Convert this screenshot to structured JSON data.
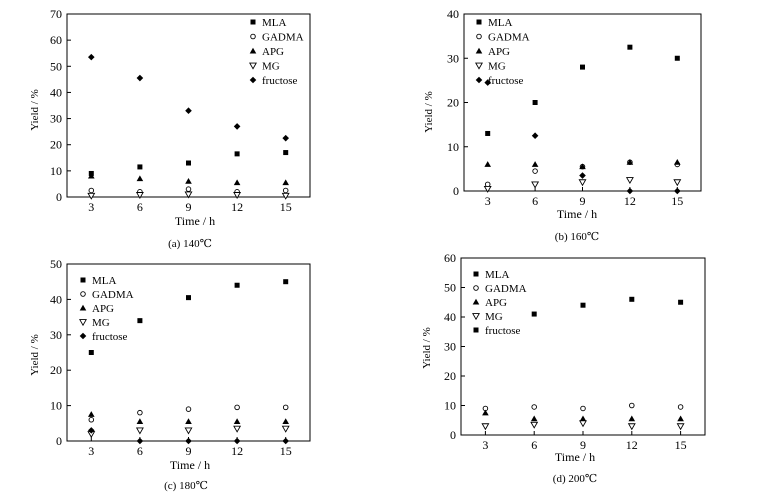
{
  "chart_data": [
    {
      "type": "scatter",
      "caption": "(a) 140℃",
      "xlabel": "Time / h",
      "ylabel": "Yield / %",
      "x": [
        3,
        6,
        9,
        12,
        15
      ],
      "xticks": [
        "3",
        "6",
        "9",
        "12",
        "15"
      ],
      "ylim": [
        0,
        70
      ],
      "yticks": [
        "0",
        "10",
        "20",
        "30",
        "40",
        "50",
        "60",
        "70"
      ],
      "series": [
        {
          "name": "MLA",
          "marker": "square",
          "values": [
            9,
            11.5,
            13,
            16.5,
            17
          ]
        },
        {
          "name": "GADMA",
          "marker": "circle-open",
          "values": [
            2.5,
            2,
            3,
            2,
            2.5
          ]
        },
        {
          "name": "APG",
          "marker": "triangle-up",
          "values": [
            8,
            7,
            6,
            5.5,
            5.5
          ]
        },
        {
          "name": "MG",
          "marker": "triangle-down-open",
          "values": [
            0.5,
            0.8,
            1,
            0.8,
            0.5
          ]
        },
        {
          "name": "fructose",
          "marker": "diamond",
          "values": [
            53.5,
            45.5,
            33,
            27,
            22.5
          ]
        }
      ]
    },
    {
      "type": "scatter",
      "caption": "(b) 160℃",
      "xlabel": "Time / h",
      "ylabel": "Yield / %",
      "x": [
        3,
        6,
        9,
        12,
        15
      ],
      "xticks": [
        "3",
        "6",
        "9",
        "12",
        "15"
      ],
      "ylim": [
        0,
        40
      ],
      "yticks": [
        "0",
        "10",
        "20",
        "30",
        "40"
      ],
      "series": [
        {
          "name": "MLA",
          "marker": "square",
          "values": [
            13,
            20,
            28,
            32.5,
            30
          ]
        },
        {
          "name": "GADMA",
          "marker": "circle-open",
          "values": [
            1.5,
            4.5,
            5.5,
            6.5,
            6
          ]
        },
        {
          "name": "APG",
          "marker": "triangle-up",
          "values": [
            6,
            6,
            5.5,
            6.5,
            6.5
          ]
        },
        {
          "name": "MG",
          "marker": "triangle-down-open",
          "values": [
            0.5,
            1.5,
            2,
            2.5,
            2
          ]
        },
        {
          "name": "fructose",
          "marker": "diamond",
          "values": [
            24.5,
            12.5,
            3.5,
            0,
            0
          ]
        }
      ]
    },
    {
      "type": "scatter",
      "caption": "(c) 180℃",
      "xlabel": "Time / h",
      "ylabel": "Yield / %",
      "x": [
        3,
        6,
        9,
        12,
        15
      ],
      "xticks": [
        "3",
        "6",
        "9",
        "12",
        "15"
      ],
      "ylim": [
        0,
        50
      ],
      "yticks": [
        "0",
        "10",
        "20",
        "30",
        "40",
        "50"
      ],
      "series": [
        {
          "name": "MLA",
          "marker": "square",
          "values": [
            25,
            34,
            40.5,
            44,
            45
          ]
        },
        {
          "name": "GADMA",
          "marker": "circle-open",
          "values": [
            6,
            8,
            9,
            9.5,
            9.5
          ]
        },
        {
          "name": "APG",
          "marker": "triangle-up",
          "values": [
            7.5,
            5.5,
            5.5,
            5.5,
            5.5
          ]
        },
        {
          "name": "MG",
          "marker": "triangle-down-open",
          "values": [
            2,
            3,
            3,
            3.5,
            3.5
          ]
        },
        {
          "name": "fructose",
          "marker": "diamond",
          "values": [
            3,
            0,
            0,
            0,
            0
          ]
        }
      ]
    },
    {
      "type": "scatter",
      "caption": "(d) 200℃",
      "xlabel": "Time / h",
      "ylabel": "Yield / %",
      "x": [
        3,
        6,
        9,
        12,
        15
      ],
      "xticks": [
        "3",
        "6",
        "9",
        "12",
        "15"
      ],
      "ylim": [
        0,
        60
      ],
      "yticks": [
        "0",
        "10",
        "20",
        "30",
        "40",
        "50",
        "60"
      ],
      "series": [
        {
          "name": "MLA",
          "marker": "square",
          "values": [
            null,
            41,
            44,
            46,
            45
          ]
        },
        {
          "name": "GADMA",
          "marker": "circle-open",
          "values": [
            9,
            9.5,
            9,
            10,
            9.5
          ]
        },
        {
          "name": "APG",
          "marker": "triangle-up",
          "values": [
            7.5,
            5.5,
            5.5,
            5.5,
            5.5
          ]
        },
        {
          "name": "MG",
          "marker": "triangle-down-open",
          "values": [
            3,
            3.5,
            4,
            3,
            3
          ]
        },
        {
          "name": "fructose",
          "marker": "square",
          "values": [
            null,
            null,
            null,
            null,
            null
          ]
        }
      ]
    }
  ]
}
